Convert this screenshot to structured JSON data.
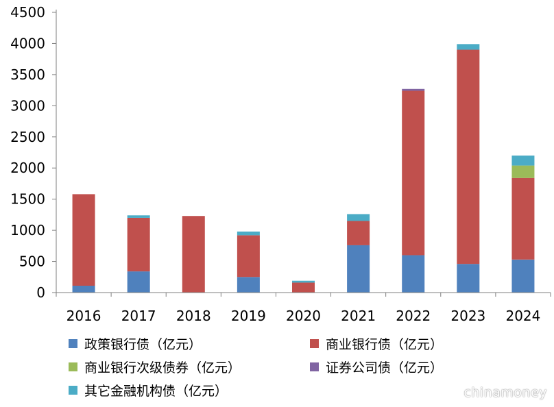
{
  "chart_data": {
    "type": "bar",
    "stacked": true,
    "categories": [
      "2016",
      "2017",
      "2018",
      "2019",
      "2020",
      "2021",
      "2022",
      "2023",
      "2024"
    ],
    "ylim": [
      0,
      4500
    ],
    "yticks": [
      0,
      500,
      1000,
      1500,
      2000,
      2500,
      3000,
      3500,
      4000,
      4500
    ],
    "grid": false,
    "legend_position": "bottom",
    "series": [
      {
        "name": "政策银行债（亿元）",
        "color": "#4f81bd",
        "values": [
          110,
          340,
          0,
          250,
          0,
          760,
          600,
          460,
          530
        ]
      },
      {
        "name": "商业银行债（亿元）",
        "color": "#c0504d",
        "values": [
          1470,
          860,
          1230,
          670,
          160,
          390,
          2640,
          3440,
          1310
        ]
      },
      {
        "name": "商业银行次级债券（亿元）",
        "color": "#9bbb59",
        "values": [
          0,
          0,
          0,
          0,
          0,
          0,
          0,
          0,
          200
        ]
      },
      {
        "name": "证券公司债（亿元）",
        "color": "#8064a2",
        "values": [
          0,
          0,
          0,
          0,
          0,
          0,
          30,
          0,
          0
        ]
      },
      {
        "name": "其它金融机构债（亿元）",
        "color": "#4bacc6",
        "values": [
          0,
          40,
          0,
          60,
          30,
          110,
          0,
          90,
          160
        ]
      }
    ]
  },
  "legend_order": [
    0,
    1,
    2,
    3,
    4
  ],
  "watermark": "chinamoney"
}
